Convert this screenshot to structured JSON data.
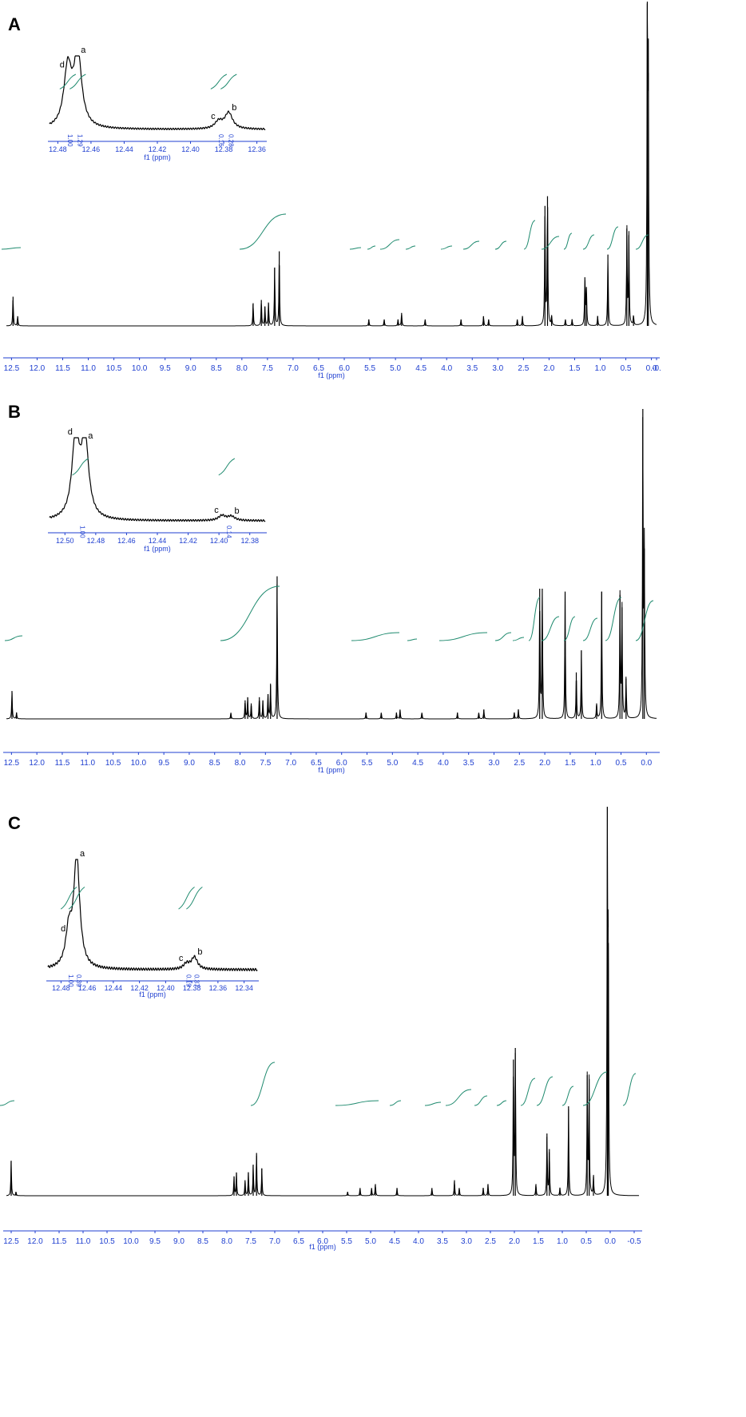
{
  "panels": [
    {
      "label": "A"
    },
    {
      "label": "B"
    },
    {
      "label": "C"
    }
  ],
  "chart_data": [
    {
      "panel": "A",
      "type": "line",
      "xlabel": "f1 (ppm)",
      "x_reversed": true,
      "xlim": [
        12.6,
        -0.1
      ],
      "xticks": [
        "12.5",
        "12.0",
        "11.5",
        "11.0",
        "10.5",
        "10.0",
        "9.5",
        "9.0",
        "8.5",
        "8.0",
        "7.5",
        "7.0",
        "6.5",
        "6.0",
        "5.5",
        "5.0",
        "4.5",
        "4.0",
        "3.5",
        "3.0",
        "2.5",
        "2.0",
        "1.5",
        "1.0",
        "0.5",
        "0.0",
        "-0."
      ],
      "peaks": [
        {
          "x": 12.47,
          "h": 0.09
        },
        {
          "x": 12.38,
          "h": 0.03
        },
        {
          "x": 7.78,
          "h": 0.07
        },
        {
          "x": 7.62,
          "h": 0.08
        },
        {
          "x": 7.55,
          "h": 0.06
        },
        {
          "x": 7.48,
          "h": 0.07
        },
        {
          "x": 7.36,
          "h": 0.18
        },
        {
          "x": 7.27,
          "h": 0.23
        },
        {
          "x": 5.52,
          "h": 0.02
        },
        {
          "x": 5.22,
          "h": 0.02
        },
        {
          "x": 4.95,
          "h": 0.02
        },
        {
          "x": 4.88,
          "h": 0.04
        },
        {
          "x": 4.42,
          "h": 0.02
        },
        {
          "x": 3.72,
          "h": 0.02
        },
        {
          "x": 3.28,
          "h": 0.03
        },
        {
          "x": 3.18,
          "h": 0.02
        },
        {
          "x": 2.62,
          "h": 0.02
        },
        {
          "x": 2.52,
          "h": 0.03
        },
        {
          "x": 2.08,
          "h": 0.37
        },
        {
          "x": 2.03,
          "h": 0.4
        },
        {
          "x": 1.95,
          "h": 0.03
        },
        {
          "x": 1.68,
          "h": 0.02
        },
        {
          "x": 1.55,
          "h": 0.02
        },
        {
          "x": 1.3,
          "h": 0.15
        },
        {
          "x": 1.27,
          "h": 0.12
        },
        {
          "x": 1.05,
          "h": 0.03
        },
        {
          "x": 0.85,
          "h": 0.22
        },
        {
          "x": 0.48,
          "h": 0.3
        },
        {
          "x": 0.44,
          "h": 0.28
        },
        {
          "x": 0.35,
          "h": 0.03
        },
        {
          "x": 0.08,
          "h": 1.0
        },
        {
          "x": 0.06,
          "h": 0.78
        }
      ],
      "inset": {
        "xlabel": "f1 (ppm)",
        "xlim": [
          12.485,
          12.355
        ],
        "xticks": [
          "12.48",
          "12.46",
          "12.44",
          "12.42",
          "12.40",
          "12.38",
          "12.36"
        ],
        "peaks": [
          {
            "x": 12.474,
            "h": 0.8,
            "label": "d"
          },
          {
            "x": 12.468,
            "h": 1.0,
            "label": "a"
          },
          {
            "x": 12.383,
            "h": 0.1,
            "label": "c"
          },
          {
            "x": 12.377,
            "h": 0.22,
            "label": "b"
          }
        ],
        "integrals": [
          "1.00",
          "1.29",
          "0.16",
          "0.28"
        ]
      }
    },
    {
      "panel": "B",
      "type": "line",
      "xlabel": "f1 (ppm)",
      "x_reversed": true,
      "xlim": [
        12.6,
        -0.2
      ],
      "xticks": [
        "12.5",
        "12.0",
        "11.5",
        "11.0",
        "10.5",
        "10.0",
        "9.5",
        "9.0",
        "8.5",
        "8.0",
        "7.5",
        "7.0",
        "6.5",
        "6.0",
        "5.5",
        "5.0",
        "4.5",
        "4.0",
        "3.5",
        "3.0",
        "2.5",
        "2.0",
        "1.5",
        "1.0",
        "0.5",
        "0.0"
      ],
      "peaks": [
        {
          "x": 12.49,
          "h": 0.09
        },
        {
          "x": 12.4,
          "h": 0.02
        },
        {
          "x": 8.18,
          "h": 0.02
        },
        {
          "x": 7.9,
          "h": 0.06
        },
        {
          "x": 7.85,
          "h": 0.07
        },
        {
          "x": 7.78,
          "h": 0.05
        },
        {
          "x": 7.62,
          "h": 0.07
        },
        {
          "x": 7.55,
          "h": 0.06
        },
        {
          "x": 7.45,
          "h": 0.08
        },
        {
          "x": 7.4,
          "h": 0.11
        },
        {
          "x": 7.27,
          "h": 0.46
        },
        {
          "x": 5.52,
          "h": 0.02
        },
        {
          "x": 5.22,
          "h": 0.02
        },
        {
          "x": 4.92,
          "h": 0.02
        },
        {
          "x": 4.85,
          "h": 0.03
        },
        {
          "x": 4.42,
          "h": 0.02
        },
        {
          "x": 3.72,
          "h": 0.02
        },
        {
          "x": 3.3,
          "h": 0.02
        },
        {
          "x": 3.2,
          "h": 0.03
        },
        {
          "x": 2.6,
          "h": 0.02
        },
        {
          "x": 2.52,
          "h": 0.03
        },
        {
          "x": 2.1,
          "h": 0.42
        },
        {
          "x": 2.05,
          "h": 0.42
        },
        {
          "x": 1.6,
          "h": 0.41
        },
        {
          "x": 1.38,
          "h": 0.15
        },
        {
          "x": 1.28,
          "h": 0.22
        },
        {
          "x": 0.98,
          "h": 0.05
        },
        {
          "x": 0.88,
          "h": 0.41
        },
        {
          "x": 0.52,
          "h": 0.4
        },
        {
          "x": 0.48,
          "h": 0.36
        },
        {
          "x": 0.4,
          "h": 0.13
        },
        {
          "x": 0.07,
          "h": 1.0
        },
        {
          "x": 0.04,
          "h": 0.55
        }
      ],
      "inset": {
        "xlabel": "f1 (ppm)",
        "xlim": [
          12.51,
          12.37
        ],
        "xticks": [
          "12.50",
          "12.48",
          "12.46",
          "12.44",
          "12.42",
          "12.40",
          "12.38"
        ],
        "peaks": [
          {
            "x": 12.493,
            "h": 1.0,
            "label": "d"
          },
          {
            "x": 12.487,
            "h": 0.95,
            "label": "a"
          },
          {
            "x": 12.398,
            "h": 0.06,
            "label": "c"
          },
          {
            "x": 12.392,
            "h": 0.05,
            "label": "b"
          }
        ],
        "integrals": [
          "1.00",
          "0.14"
        ]
      }
    },
    {
      "panel": "C",
      "type": "line",
      "xlabel": "f1 (ppm)",
      "x_reversed": true,
      "xlim": [
        12.6,
        -0.6
      ],
      "xticks": [
        "12.5",
        "12.0",
        "11.5",
        "11.0",
        "10.5",
        "10.0",
        "9.5",
        "9.0",
        "8.5",
        "8.0",
        "7.5",
        "7.0",
        "6.5",
        "6.0",
        "5.5",
        "5.0",
        "4.5",
        "4.0",
        "3.5",
        "3.0",
        "2.5",
        "2.0",
        "1.5",
        "1.0",
        "0.5",
        "0.0",
        "-0.5"
      ],
      "peaks": [
        {
          "x": 12.5,
          "h": 0.09
        },
        {
          "x": 12.4,
          "h": 0.01
        },
        {
          "x": 7.85,
          "h": 0.05
        },
        {
          "x": 7.8,
          "h": 0.06
        },
        {
          "x": 7.62,
          "h": 0.04
        },
        {
          "x": 7.55,
          "h": 0.06
        },
        {
          "x": 7.45,
          "h": 0.08
        },
        {
          "x": 7.38,
          "h": 0.11
        },
        {
          "x": 7.27,
          "h": 0.07
        },
        {
          "x": 5.48,
          "h": 0.01
        },
        {
          "x": 5.22,
          "h": 0.02
        },
        {
          "x": 4.98,
          "h": 0.02
        },
        {
          "x": 4.9,
          "h": 0.03
        },
        {
          "x": 4.45,
          "h": 0.02
        },
        {
          "x": 3.72,
          "h": 0.02
        },
        {
          "x": 3.25,
          "h": 0.04
        },
        {
          "x": 3.15,
          "h": 0.02
        },
        {
          "x": 2.65,
          "h": 0.02
        },
        {
          "x": 2.55,
          "h": 0.03
        },
        {
          "x": 2.02,
          "h": 0.35
        },
        {
          "x": 1.98,
          "h": 0.38
        },
        {
          "x": 1.55,
          "h": 0.03
        },
        {
          "x": 1.32,
          "h": 0.16
        },
        {
          "x": 1.27,
          "h": 0.12
        },
        {
          "x": 1.05,
          "h": 0.02
        },
        {
          "x": 0.87,
          "h": 0.23
        },
        {
          "x": 0.48,
          "h": 0.31
        },
        {
          "x": 0.44,
          "h": 0.3
        },
        {
          "x": 0.35,
          "h": 0.05
        },
        {
          "x": 0.06,
          "h": 1.0
        },
        {
          "x": 0.04,
          "h": 0.65
        }
      ],
      "inset": {
        "xlabel": "f1 (ppm)",
        "xlim": [
          12.49,
          12.33
        ],
        "xticks": [
          "12.48",
          "12.46",
          "12.44",
          "12.42",
          "12.40",
          "12.38",
          "12.36",
          "12.34"
        ],
        "peaks": [
          {
            "x": 12.474,
            "h": 0.32,
            "label": "d"
          },
          {
            "x": 12.468,
            "h": 1.0,
            "label": "a"
          },
          {
            "x": 12.384,
            "h": 0.05,
            "label": "c"
          },
          {
            "x": 12.378,
            "h": 0.11,
            "label": "b"
          }
        ],
        "integrals": [
          "1.00",
          "0.39",
          "0.19",
          "0.37"
        ]
      }
    }
  ],
  "colors": {
    "spectrum": "#000000",
    "axis": "#1f3fd0",
    "integral": "#1e8a6e"
  }
}
